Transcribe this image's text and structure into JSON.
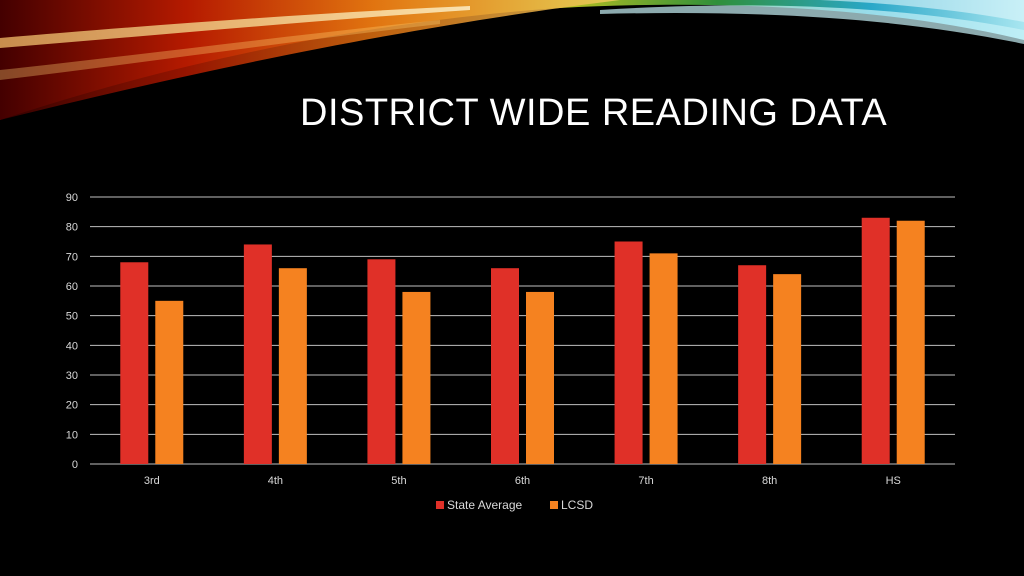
{
  "slide": {
    "title": "DISTRICT WIDE READING DATA"
  },
  "chart_data": {
    "type": "bar",
    "categories": [
      "3rd",
      "4th",
      "5th",
      "6th",
      "7th",
      "8th",
      "HS"
    ],
    "series": [
      {
        "name": "State Average",
        "values": [
          68,
          74,
          69,
          66,
          75,
          67,
          83
        ],
        "color": "#e03028"
      },
      {
        "name": "LCSD",
        "values": [
          55,
          66,
          58,
          58,
          71,
          64,
          82
        ],
        "color": "#f58220"
      }
    ],
    "ylim": [
      0,
      90
    ],
    "yticks": [
      "0",
      "10",
      "20",
      "30",
      "40",
      "50",
      "60",
      "70",
      "80",
      "90"
    ],
    "grid": true,
    "legend": "bottom",
    "gridline_color": "#bfbfbf",
    "axis_label_color": "#d9d9d9"
  }
}
